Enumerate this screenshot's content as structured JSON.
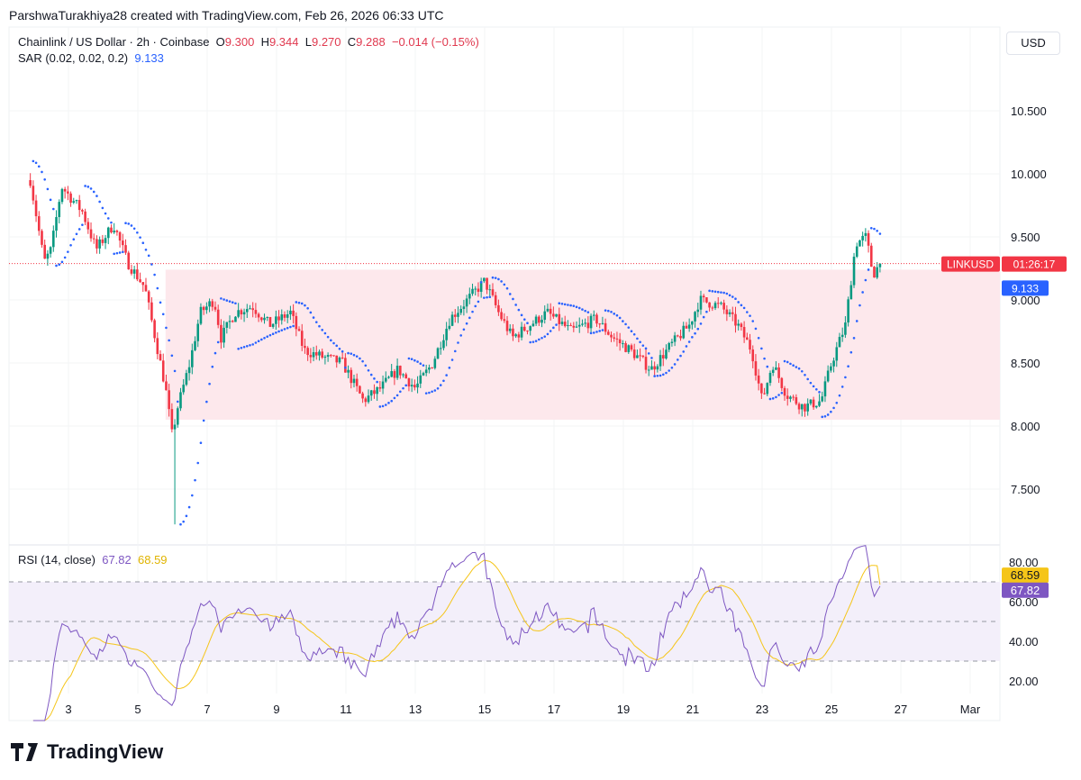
{
  "credit": "ParshwaTurakhiya28 created with TradingView.com, Feb 26, 2026 06:33 UTC",
  "legend": {
    "symbol": "Chainlink / US Dollar · 2h · Coinbase",
    "o_label": "O",
    "o": "9.300",
    "h_label": "H",
    "h": "9.344",
    "l_label": "L",
    "l": "9.270",
    "c_label": "C",
    "c": "9.288",
    "change": "−0.014 (−0.15%)",
    "sar_label": "SAR (0.02, 0.02, 0.2)",
    "sar_value": "9.133"
  },
  "currency": "USD",
  "price_tag": {
    "symbol": "LINKUSD",
    "countdown": "01:26:17",
    "sar_tag": "9.133"
  },
  "colors": {
    "up": "#089981",
    "down": "#f23645",
    "sar": "#2962ff",
    "range_box": "#fde8ec",
    "rsi": "#7e57c2",
    "rsi_ma": "#f5c518"
  },
  "chart_data": [
    {
      "type": "candlestick",
      "title": "Chainlink / US Dollar · 2h · Coinbase",
      "ylim": [
        7.2,
        10.9
      ],
      "yticks": [
        "7.500",
        "8.000",
        "8.500",
        "9.000",
        "9.500",
        "10.000",
        "10.500"
      ],
      "xticks": [
        "3",
        "5",
        "7",
        "9",
        "11",
        "13",
        "15",
        "17",
        "19",
        "21",
        "23",
        "25",
        "27",
        "Mar"
      ],
      "range_box": {
        "low": 8.05,
        "high": 9.24,
        "from_day": 5.8
      },
      "approx_close_path": [
        [
          1.9,
          9.95
        ],
        [
          2.3,
          9.3
        ],
        [
          2.5,
          9.4
        ],
        [
          2.8,
          9.9
        ],
        [
          3.4,
          9.7
        ],
        [
          3.8,
          9.4
        ],
        [
          4.3,
          9.6
        ],
        [
          4.7,
          9.3
        ],
        [
          5.2,
          9.1
        ],
        [
          5.5,
          8.7
        ],
        [
          5.8,
          8.3
        ],
        [
          6.0,
          7.9
        ],
        [
          6.1,
          8.1
        ],
        [
          6.5,
          8.5
        ],
        [
          6.8,
          8.9
        ],
        [
          7.2,
          9.0
        ],
        [
          7.4,
          8.7
        ],
        [
          7.8,
          8.9
        ],
        [
          8.3,
          8.95
        ],
        [
          8.8,
          8.8
        ],
        [
          9.4,
          8.9
        ],
        [
          9.8,
          8.6
        ],
        [
          10.3,
          8.55
        ],
        [
          10.9,
          8.5
        ],
        [
          11.5,
          8.2
        ],
        [
          12.0,
          8.3
        ],
        [
          12.5,
          8.45
        ],
        [
          13.0,
          8.3
        ],
        [
          13.5,
          8.5
        ],
        [
          14.0,
          8.85
        ],
        [
          14.5,
          9.0
        ],
        [
          15.0,
          9.15
        ],
        [
          15.4,
          8.9
        ],
        [
          15.8,
          8.7
        ],
        [
          16.3,
          8.8
        ],
        [
          16.8,
          8.9
        ],
        [
          17.5,
          8.75
        ],
        [
          18.2,
          8.85
        ],
        [
          18.7,
          8.7
        ],
        [
          19.2,
          8.6
        ],
        [
          19.8,
          8.45
        ],
        [
          20.4,
          8.65
        ],
        [
          20.9,
          8.8
        ],
        [
          21.2,
          9.0
        ],
        [
          21.8,
          8.95
        ],
        [
          22.3,
          8.8
        ],
        [
          22.7,
          8.6
        ],
        [
          23.0,
          8.2
        ],
        [
          23.3,
          8.5
        ],
        [
          23.7,
          8.25
        ],
        [
          24.2,
          8.15
        ],
        [
          24.7,
          8.2
        ],
        [
          25.0,
          8.5
        ],
        [
          25.4,
          8.8
        ],
        [
          25.7,
          9.45
        ],
        [
          26.0,
          9.5
        ],
        [
          26.2,
          9.2
        ],
        [
          26.4,
          9.29
        ]
      ],
      "last_price": 9.288,
      "sar_last": 9.133
    },
    {
      "type": "line",
      "title": "RSI (14, close)",
      "ylim": [
        14,
        86
      ],
      "yticks": [
        "20.00",
        "40.00",
        "60.00",
        "80.00"
      ],
      "levels": [
        30,
        50,
        70
      ],
      "series": [
        {
          "name": "RSI",
          "last": 67.82,
          "last_label": "67.82"
        },
        {
          "name": "RSI MA",
          "last": 68.59,
          "last_label": "68.59"
        }
      ]
    }
  ],
  "logo": "TradingView"
}
